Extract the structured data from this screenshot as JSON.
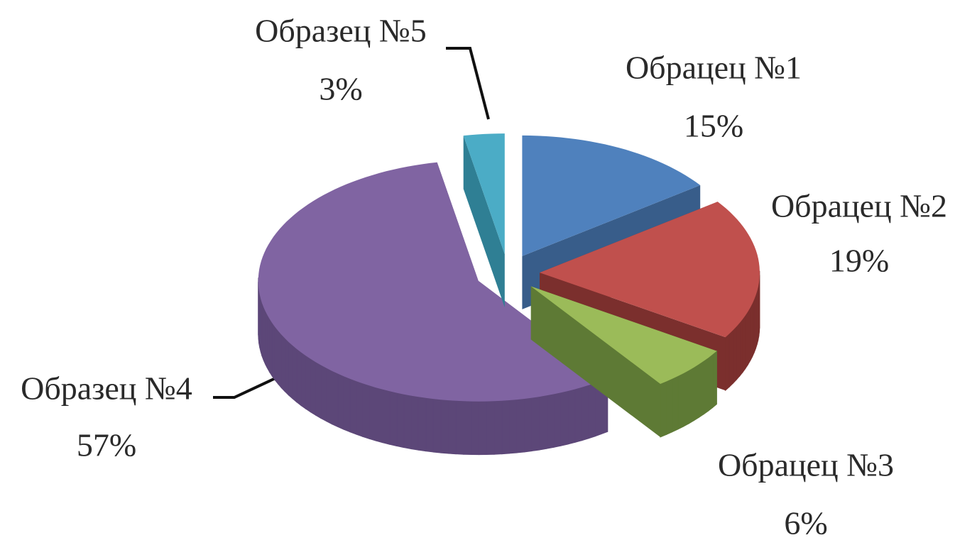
{
  "chart_data": {
    "type": "pie",
    "categories": [
      "Обрацец №1",
      "Обрацец №2",
      "Обрацец №3",
      "Образец №4",
      "Образец №5"
    ],
    "values": [
      15,
      19,
      6,
      57,
      3
    ],
    "value_labels": [
      "15%",
      "19%",
      "6%",
      "57%",
      "3%"
    ],
    "colors": [
      "#4f81bd",
      "#c0504d",
      "#9bbb59",
      "#8064a2",
      "#4bacc6"
    ],
    "side_colors": [
      "#385d8a",
      "#7b2f2d",
      "#5e7a35",
      "#5c4778",
      "#2f7f94"
    ]
  }
}
